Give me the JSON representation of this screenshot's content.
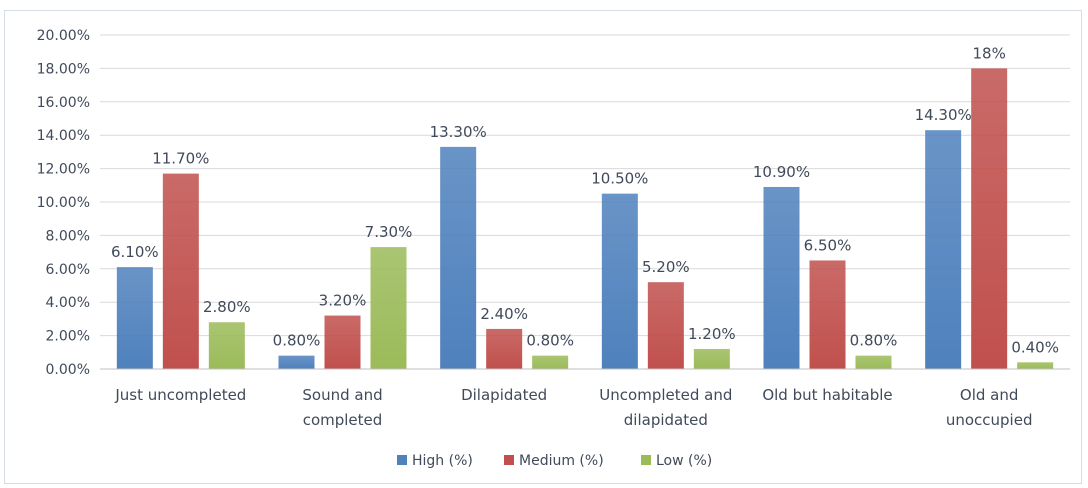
{
  "chart_data": {
    "type": "bar",
    "categories": [
      [
        "Just uncompleted"
      ],
      [
        "Sound and",
        "completed"
      ],
      [
        "Dilapidated"
      ],
      [
        "Uncompleted and",
        "dilapidated"
      ],
      [
        "Old but habitable"
      ],
      [
        "Old and",
        "unoccupied"
      ]
    ],
    "series": [
      {
        "name": "High (%)",
        "color": "#4f81bd",
        "values": [
          6.1,
          0.8,
          13.3,
          10.5,
          10.9,
          14.3
        ],
        "labels": [
          "6.10%",
          "0.80%",
          "13.30%",
          "10.50%",
          "10.90%",
          "14.30%"
        ]
      },
      {
        "name": "Medium (%)",
        "color": "#c0504d",
        "values": [
          11.7,
          3.2,
          2.4,
          5.2,
          6.5,
          18.0
        ],
        "labels": [
          "11.70%",
          "3.20%",
          "2.40%",
          "5.20%",
          "6.50%",
          "18%"
        ]
      },
      {
        "name": "Low (%)",
        "color": "#9bbb59",
        "values": [
          2.8,
          7.3,
          0.8,
          1.2,
          0.8,
          0.4
        ],
        "labels": [
          "2.80%",
          "7.30%",
          "0.80%",
          "1.20%",
          "0.80%",
          "0.40%"
        ]
      }
    ],
    "yticks": [
      "0.00%",
      "2.00%",
      "4.00%",
      "6.00%",
      "8.00%",
      "10.00%",
      "12.00%",
      "14.00%",
      "16.00%",
      "18.00%",
      "20.00%"
    ],
    "ylim": [
      0,
      20
    ],
    "grid": true,
    "legend_position": "bottom"
  }
}
